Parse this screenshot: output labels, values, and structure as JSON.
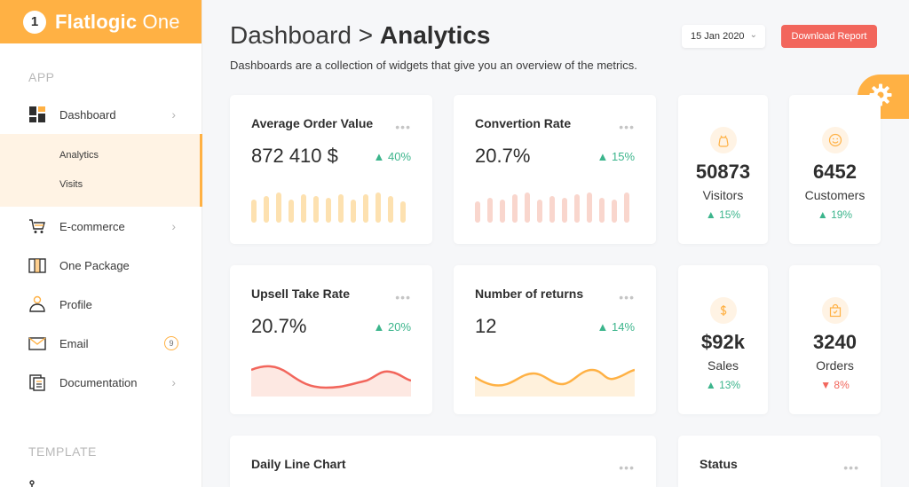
{
  "brand": {
    "logo_char": "1",
    "name_bold": "Flatlogic",
    "name_light": " One"
  },
  "sidebar": {
    "app_label": "APP",
    "template_label": "TEMPLATE",
    "items": [
      {
        "label": "Dashboard",
        "icon": "dashboard-icon",
        "chevron": true
      },
      {
        "label": "E-commerce",
        "icon": "cart-icon",
        "chevron": true
      },
      {
        "label": "One Package",
        "icon": "package-icon",
        "chevron": false
      },
      {
        "label": "Profile",
        "icon": "profile-icon",
        "chevron": false
      },
      {
        "label": "Email",
        "icon": "mail-icon",
        "badge": "9"
      },
      {
        "label": "Documentation",
        "icon": "document-icon",
        "chevron": true
      }
    ],
    "subitems": [
      "Analytics",
      "Visits"
    ]
  },
  "header": {
    "breadcrumb_parent": "Dashboard > ",
    "breadcrumb_current": "Analytics",
    "subtitle": "Dashboards are a collection of widgets that give you an overview of the metrics.",
    "date": "15 Jan 2020",
    "download_label": "Download Report"
  },
  "cards": [
    {
      "title": "Average Order Value",
      "value": "872 410 $",
      "delta": "▲ 40%"
    },
    {
      "title": "Convertion Rate",
      "value": "20.7%",
      "delta": "▲ 15%"
    },
    {
      "title": "Upsell Take Rate",
      "value": "20.7%",
      "delta": "▲ 20%"
    },
    {
      "title": "Number of returns",
      "value": "12",
      "delta": "▲ 14%"
    }
  ],
  "mini_cards": [
    {
      "value": "50873",
      "label": "Visitors",
      "delta": "▲ 15%",
      "icon": "bag-icon"
    },
    {
      "value": "6452",
      "label": "Customers",
      "delta": "▲ 19%",
      "icon": "smile-icon"
    },
    {
      "value": "$92k",
      "label": "Sales",
      "delta": "▲ 13%",
      "icon": "dollar-icon"
    },
    {
      "value": "3240",
      "label": "Orders",
      "delta": "▼ 8%",
      "icon": "shopping-bag-icon"
    }
  ],
  "bottom_cards": [
    {
      "title": "Daily Line Chart"
    },
    {
      "title": "Status"
    }
  ],
  "dots": "•••",
  "colors": {
    "accent": "#ffb144",
    "danger": "#f2665c",
    "success": "#3cb58c"
  }
}
